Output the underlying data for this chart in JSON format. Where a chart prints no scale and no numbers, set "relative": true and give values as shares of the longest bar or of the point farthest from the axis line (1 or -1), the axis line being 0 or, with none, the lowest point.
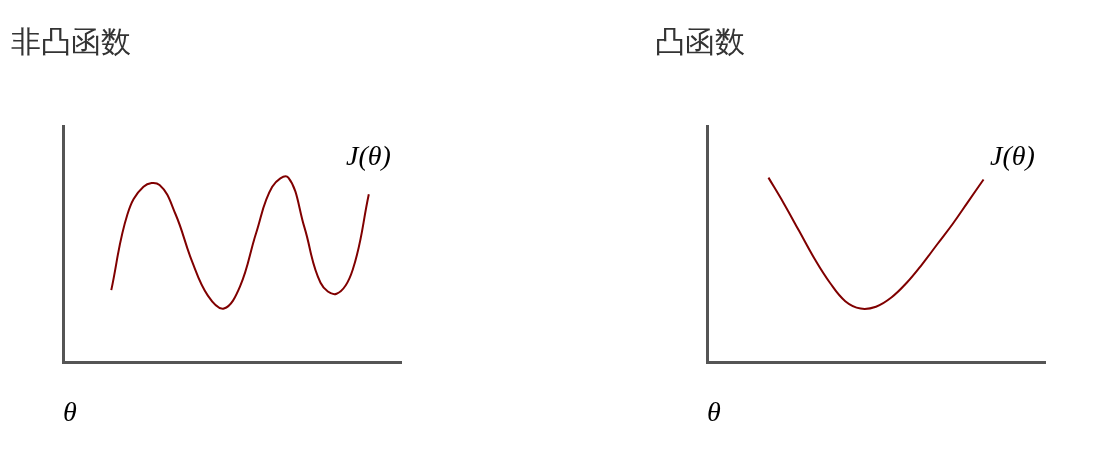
{
  "chart_data": [
    {
      "type": "line",
      "title": "非凸函数",
      "xlabel": "θ",
      "annotations": [
        "J(θ)"
      ],
      "relative": true,
      "marker": "none",
      "line_style": "solid",
      "categories": [
        null,
        null,
        null,
        null,
        null,
        null,
        null,
        null,
        null,
        null,
        null,
        null,
        null,
        null,
        null,
        null,
        null,
        null,
        null,
        null,
        null,
        null
      ],
      "series": [
        {
          "color": "#800000",
          "values": [
            null,
            null,
            null,
            0.39,
            0.8,
            0.95,
            0.96,
            0.8,
            0.55,
            0.36,
            0.29,
            0.41,
            0.7,
            0.95,
            1,
            0.73,
            0.43,
            0.37,
            0.5,
            0.91,
            null,
            null
          ]
        }
      ]
    },
    {
      "type": "line",
      "title": "凸函数",
      "xlabel": "θ",
      "annotations": [
        "J(θ)"
      ],
      "relative": true,
      "marker": "none",
      "line_style": "solid",
      "categories": [
        null,
        null,
        null,
        null,
        null,
        null,
        null,
        null,
        null,
        null,
        null,
        null,
        null,
        null,
        null,
        null,
        null,
        null,
        null,
        null,
        null,
        null,
        null
      ],
      "series": [
        {
          "color": "#800000",
          "values": [
            null,
            null,
            null,
            null,
            1,
            0.86,
            0.71,
            0.56,
            0.43,
            0.33,
            0.29,
            0.3,
            0.35,
            0.43,
            0.53,
            0.64,
            0.75,
            0.87,
            0.99,
            null,
            null,
            null,
            null
          ]
        }
      ]
    }
  ]
}
